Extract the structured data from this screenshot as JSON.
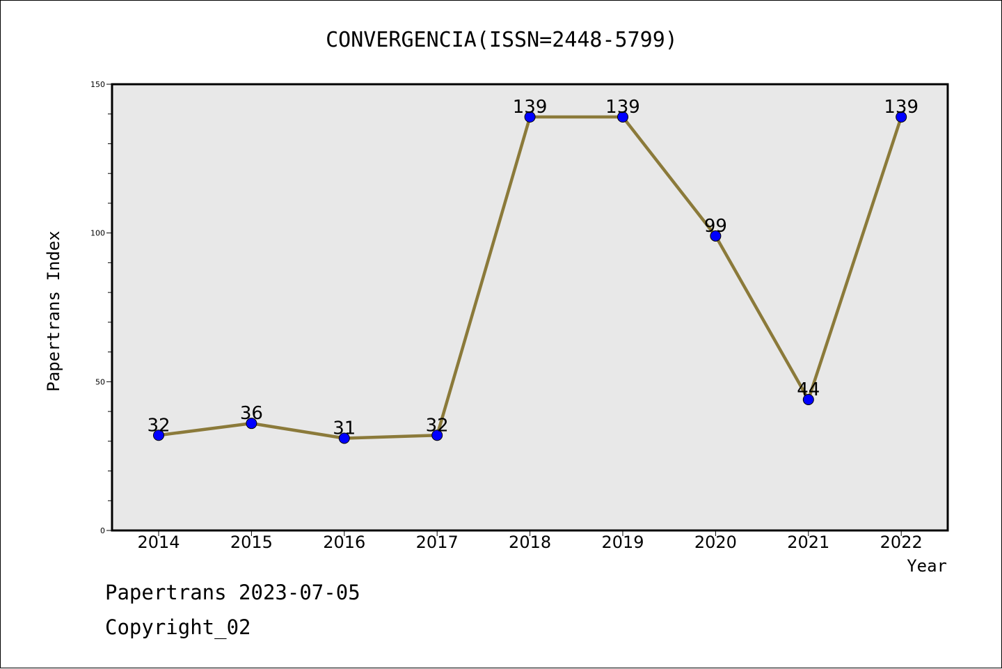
{
  "chart_data": {
    "type": "line",
    "title": "CONVERGENCIA(ISSN=2448-5799)",
    "xlabel": "Year",
    "ylabel": "Papertrans Index",
    "categories": [
      "2014",
      "2015",
      "2016",
      "2017",
      "2018",
      "2019",
      "2020",
      "2021",
      "2022"
    ],
    "series": [
      {
        "values": [
          32,
          36,
          31,
          32,
          139,
          139,
          99,
          44,
          139
        ],
        "line_color": "#8b7a3a",
        "marker_color": "#0000ff"
      }
    ],
    "ylim": [
      0,
      150
    ],
    "yticks": [
      0,
      50,
      100,
      150
    ],
    "grid": false,
    "plot_background": "#e8e8e8",
    "data_labels": true
  },
  "footer": {
    "line1": "Papertrans 2023-07-05",
    "line2": "Copyright_02"
  }
}
